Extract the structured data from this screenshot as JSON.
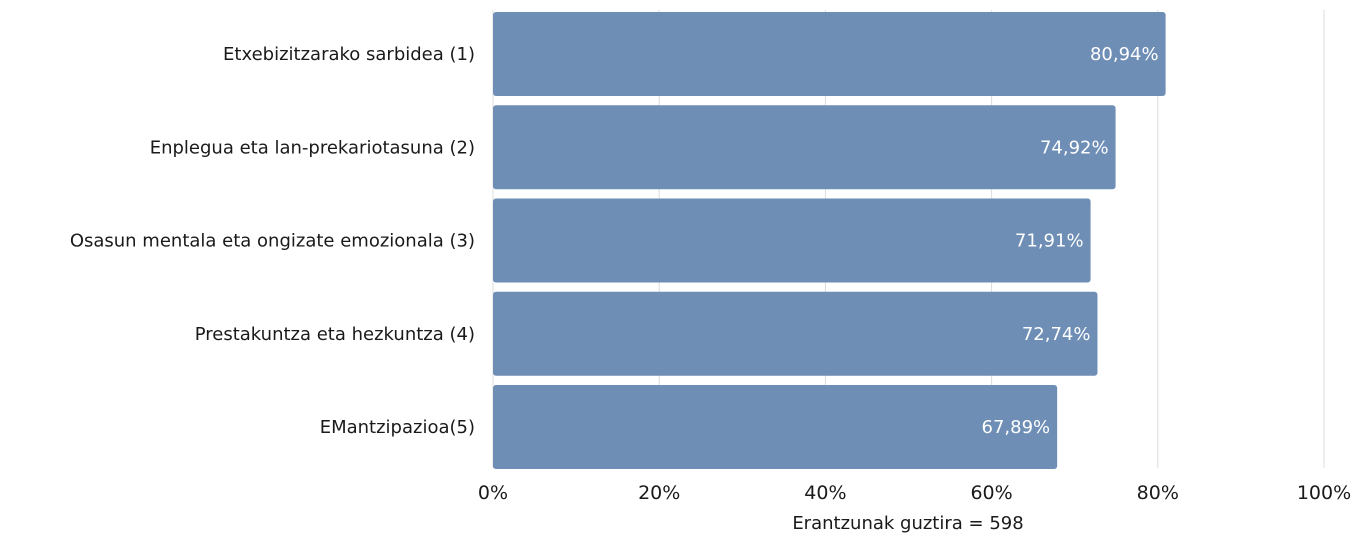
{
  "chart_data": {
    "type": "bar",
    "orientation": "horizontal",
    "categories": [
      "Etxebizitzarako sarbidea (1)",
      "Enplegua eta lan-prekariotasuna (2)",
      "Osasun mentala eta ongizate emozionala (3)",
      "Prestakuntza eta hezkuntza (4)",
      "EMantzipazioa(5)"
    ],
    "values": [
      80.94,
      74.92,
      71.91,
      72.74,
      67.89
    ],
    "data_labels": [
      "80,94%",
      "74,92%",
      "71,91%",
      "72,74%",
      "67,89%"
    ],
    "xlim": [
      0,
      100
    ],
    "xticks": [
      0,
      20,
      40,
      60,
      80,
      100
    ],
    "xtick_labels": [
      "0%",
      "20%",
      "40%",
      "60%",
      "80%",
      "100%"
    ],
    "grid": true,
    "legend": "none",
    "bar_color": "#6e8eb6",
    "grid_color": "#dcdcdc",
    "note": "Erantzunak guztira = 598"
  }
}
